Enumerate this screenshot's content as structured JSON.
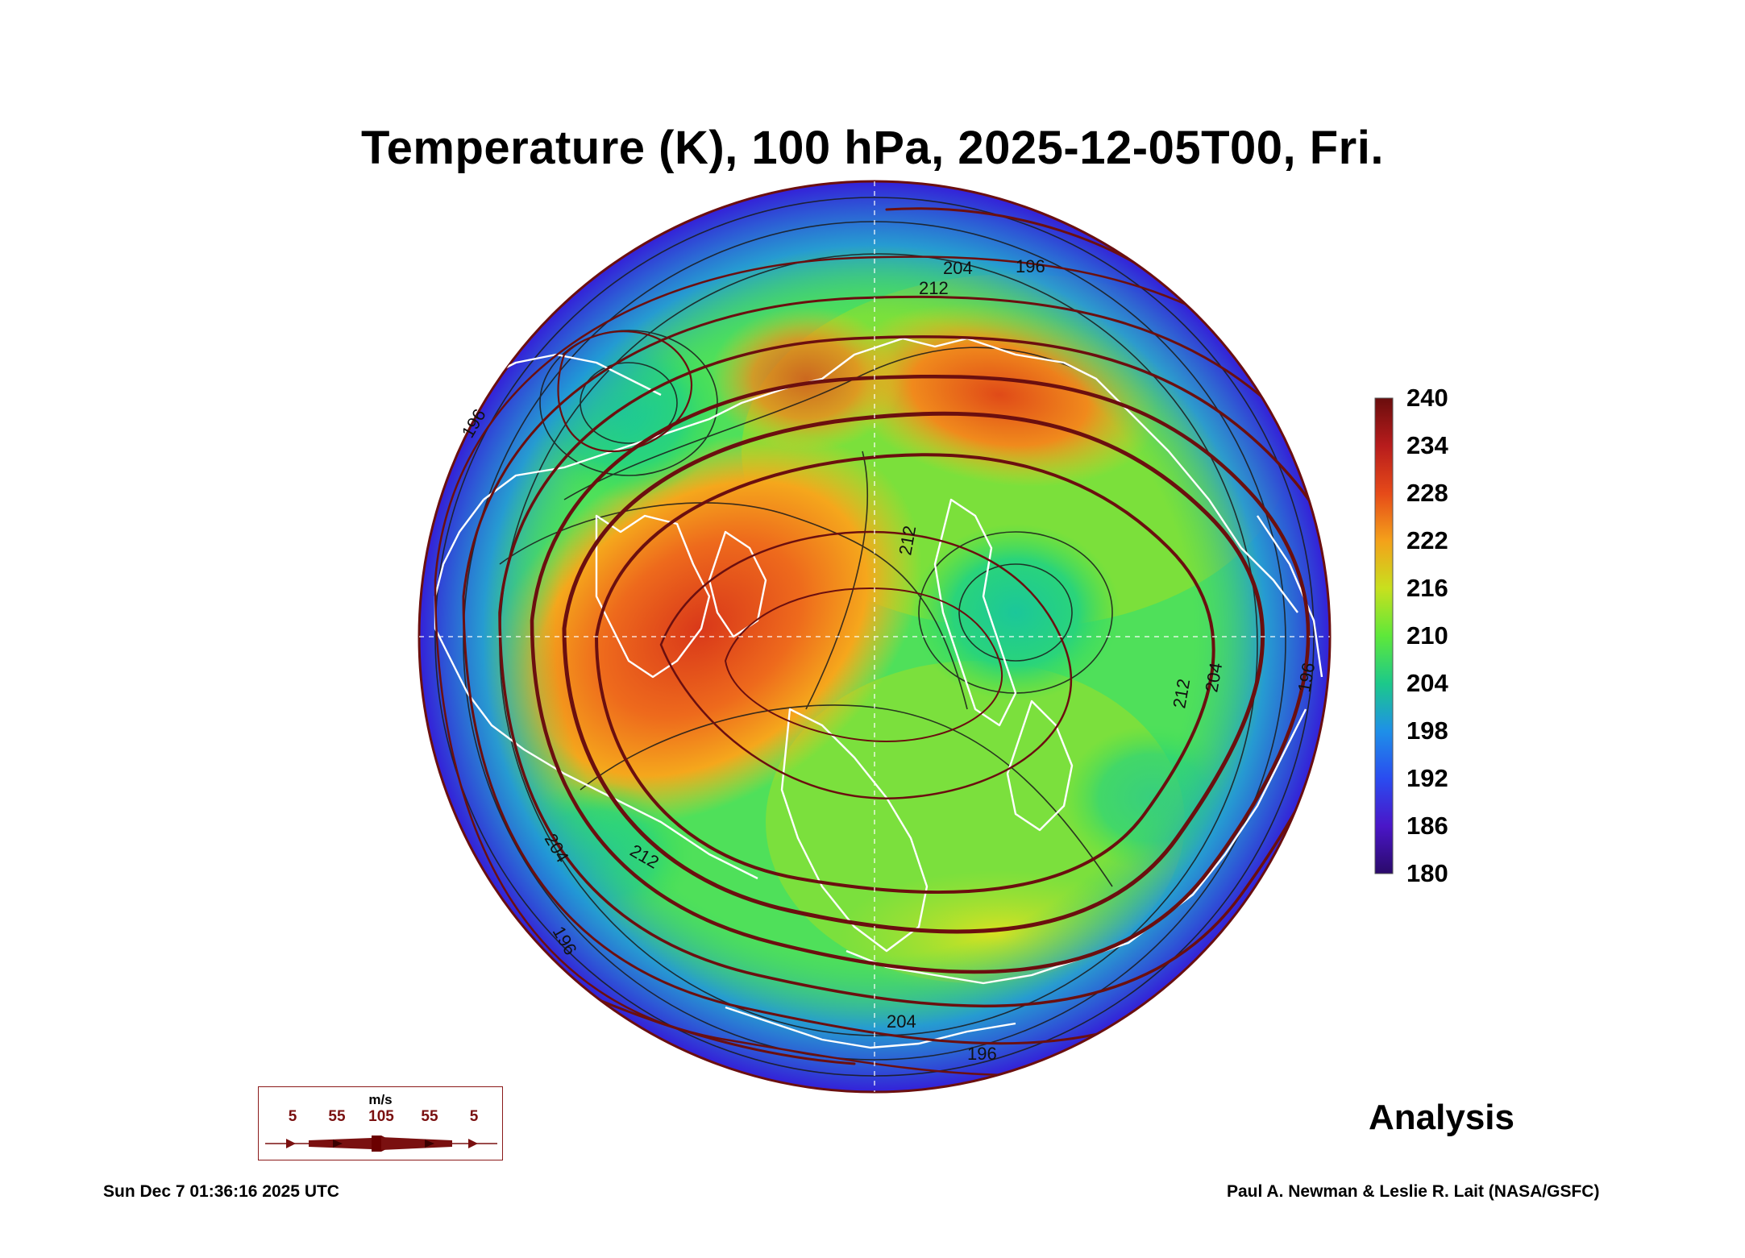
{
  "title": "Temperature (K), 100 hPa, 2025-12-05T00, Fri.",
  "colorbar": {
    "labels": [
      "240",
      "234",
      "228",
      "222",
      "216",
      "210",
      "204",
      "198",
      "192",
      "186",
      "180"
    ],
    "stops": [
      "#6a0d0d",
      "#b71c1c",
      "#e64a19",
      "#f4a11a",
      "#c8e01e",
      "#5ee83a",
      "#1cc98a",
      "#1e90e8",
      "#2a4cf0",
      "#4a16c8",
      "#2a0a6a"
    ]
  },
  "contour_labels": [
    "204",
    "196",
    "212",
    "212",
    "204",
    "196",
    "212",
    "204",
    "196",
    "212",
    "204",
    "196",
    "196"
  ],
  "wind_legend": {
    "unit": "m/s",
    "ticks": [
      "5",
      "55",
      "105",
      "55",
      "5"
    ]
  },
  "analysis_label": "Analysis",
  "footer_left": "Sun Dec  7 01:36:16 2025 UTC",
  "footer_right": "Paul A. Newman & Leslie R. Lait (NASA/GSFC)",
  "colors": {
    "streamline": "#6b0f0f",
    "coastline": "#ffffff",
    "contour": "#1a1a1a"
  }
}
